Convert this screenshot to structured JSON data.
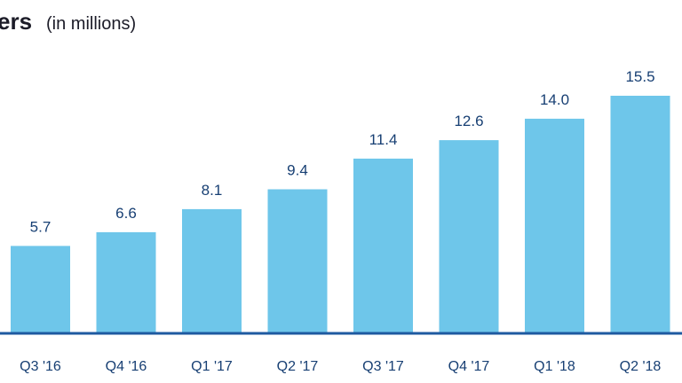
{
  "chart_data": {
    "type": "bar",
    "title": "ers",
    "subtitle": "(in millions)",
    "categories": [
      "Q3 '16",
      "Q4 '16",
      "Q1 '17",
      "Q2 '17",
      "Q3 '17",
      "Q4 '17",
      "Q1 '18",
      "Q2 '18"
    ],
    "values": [
      5.7,
      6.6,
      8.1,
      9.4,
      11.4,
      12.6,
      14.0,
      15.5
    ],
    "value_labels": [
      "5.7",
      "6.6",
      "8.1",
      "9.4",
      "11.4",
      "12.6",
      "14.0",
      "15.5"
    ],
    "xlabel": "",
    "ylabel": "",
    "ylim": [
      0,
      15.5
    ],
    "grid": false,
    "legend": "none",
    "colors": {
      "bar": "#6ec6ea",
      "baseline": "#1e5aa0",
      "value_text": "#173f73",
      "tick_text": "#173f73",
      "title_text": "#1c1c28"
    }
  }
}
